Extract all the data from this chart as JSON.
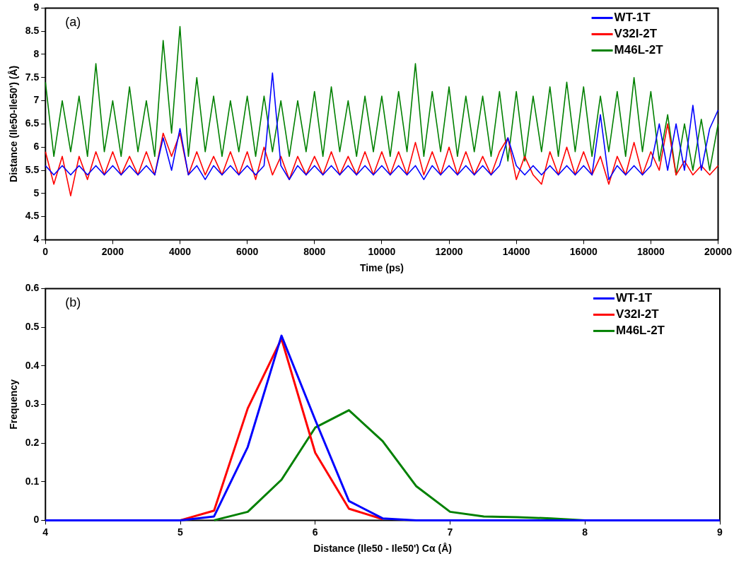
{
  "chart_data": [
    {
      "type": "line",
      "xlabel": "Time (ps)",
      "ylabel": "Distance (Ile50-Ile50') (Å)",
      "annotations": [
        "(a)"
      ],
      "legend": "top right",
      "grid": false,
      "marker": "none",
      "line_style": "solid",
      "xlim": [
        0,
        20000
      ],
      "xticks": [
        0,
        2000,
        4000,
        6000,
        8000,
        10000,
        12000,
        14000,
        16000,
        18000,
        20000
      ],
      "ylim": [
        4,
        9
      ],
      "yticks": [
        4,
        4.5,
        5,
        5.5,
        6,
        6.5,
        7,
        7.5,
        8,
        8.5,
        9
      ],
      "x": [
        0,
        250,
        500,
        750,
        1000,
        1250,
        1500,
        1750,
        2000,
        2250,
        2500,
        2750,
        3000,
        3250,
        3500,
        3750,
        4000,
        4250,
        4500,
        4750,
        5000,
        5250,
        5500,
        5750,
        6000,
        6250,
        6500,
        6750,
        7000,
        7250,
        7500,
        7750,
        8000,
        8250,
        8500,
        8750,
        9000,
        9250,
        9500,
        9750,
        10000,
        10250,
        10500,
        10750,
        11000,
        11250,
        11500,
        11750,
        12000,
        12250,
        12500,
        12750,
        13000,
        13250,
        13500,
        13750,
        14000,
        14250,
        14500,
        14750,
        15000,
        15250,
        15500,
        15750,
        16000,
        16250,
        16500,
        16750,
        17000,
        17250,
        17500,
        17750,
        18000,
        18250,
        18500,
        18750,
        19000,
        19250,
        19500,
        19750,
        20000
      ],
      "series": [
        {
          "name": "WT-1T",
          "color": "#0000ff",
          "values": [
            5.6,
            5.4,
            5.6,
            5.4,
            5.6,
            5.4,
            5.6,
            5.4,
            5.6,
            5.4,
            5.6,
            5.4,
            5.6,
            5.4,
            6.2,
            5.5,
            6.4,
            5.4,
            5.6,
            5.3,
            5.6,
            5.4,
            5.6,
            5.4,
            5.6,
            5.4,
            5.6,
            7.6,
            5.6,
            5.3,
            5.6,
            5.4,
            5.6,
            5.4,
            5.6,
            5.4,
            5.6,
            5.4,
            5.6,
            5.4,
            5.6,
            5.4,
            5.6,
            5.4,
            5.6,
            5.3,
            5.6,
            5.4,
            5.6,
            5.4,
            5.6,
            5.4,
            5.6,
            5.4,
            5.6,
            6.2,
            5.6,
            5.4,
            5.6,
            5.4,
            5.6,
            5.4,
            5.6,
            5.4,
            5.6,
            5.4,
            6.7,
            5.3,
            5.6,
            5.4,
            5.6,
            5.4,
            5.6,
            6.5,
            5.5,
            6.5,
            5.5,
            6.9,
            5.5,
            6.4,
            6.8
          ]
        },
        {
          "name": "V32I-2T",
          "color": "#ff0000",
          "values": [
            5.9,
            5.2,
            5.8,
            4.95,
            5.8,
            5.3,
            5.9,
            5.4,
            5.9,
            5.4,
            5.8,
            5.4,
            5.9,
            5.4,
            6.3,
            5.8,
            6.3,
            5.4,
            5.9,
            5.4,
            5.8,
            5.4,
            5.9,
            5.4,
            5.9,
            5.3,
            6.0,
            5.4,
            5.8,
            5.3,
            5.8,
            5.4,
            5.8,
            5.4,
            5.9,
            5.4,
            5.8,
            5.4,
            5.9,
            5.4,
            5.9,
            5.4,
            5.9,
            5.4,
            6.1,
            5.4,
            5.9,
            5.4,
            6.0,
            5.4,
            5.9,
            5.4,
            5.8,
            5.4,
            5.9,
            6.2,
            5.3,
            5.8,
            5.4,
            5.2,
            5.9,
            5.4,
            6.0,
            5.4,
            5.9,
            5.4,
            5.8,
            5.2,
            5.8,
            5.4,
            6.1,
            5.4,
            5.9,
            5.5,
            6.5,
            5.4,
            5.7,
            5.4,
            5.6,
            5.4,
            5.6
          ]
        },
        {
          "name": "M46L-2T",
          "color": "#008000",
          "values": [
            7.4,
            5.8,
            7.0,
            5.9,
            7.1,
            5.8,
            7.8,
            5.9,
            7.0,
            5.8,
            7.3,
            5.9,
            7.0,
            5.8,
            8.3,
            6.3,
            8.6,
            5.8,
            7.5,
            5.9,
            7.1,
            5.8,
            7.0,
            5.9,
            7.1,
            5.8,
            7.1,
            5.9,
            7.0,
            5.8,
            7.0,
            5.9,
            7.2,
            5.8,
            7.3,
            5.9,
            7.0,
            5.8,
            7.1,
            5.9,
            7.1,
            5.8,
            7.2,
            5.9,
            7.8,
            5.8,
            7.2,
            5.9,
            7.3,
            5.8,
            7.1,
            5.9,
            7.1,
            5.8,
            7.2,
            5.7,
            7.2,
            5.7,
            7.1,
            5.9,
            7.3,
            5.8,
            7.4,
            5.9,
            7.3,
            5.8,
            7.1,
            5.9,
            7.2,
            5.8,
            7.5,
            5.9,
            7.2,
            5.7,
            6.7,
            5.4,
            6.5,
            5.5,
            6.6,
            5.5,
            6.5
          ]
        }
      ]
    },
    {
      "type": "line",
      "xlabel": "Distance (Ile50 - Ile50') Cα (Å)",
      "ylabel": "Frequency",
      "annotations": [
        "(b)"
      ],
      "legend": "top right",
      "grid": false,
      "marker": "none",
      "line_style": "solid",
      "xlim": [
        4,
        9
      ],
      "xticks": [
        4,
        5,
        6,
        7,
        8,
        9
      ],
      "ylim": [
        0,
        0.6
      ],
      "yticks": [
        0,
        0.1,
        0.2,
        0.3,
        0.4,
        0.5,
        0.6
      ],
      "x": [
        4,
        4.25,
        4.5,
        4.75,
        5,
        5.25,
        5.5,
        5.75,
        6,
        6.25,
        6.5,
        6.75,
        7,
        7.25,
        7.5,
        7.75,
        8,
        8.25,
        8.5,
        8.75,
        9
      ],
      "series": [
        {
          "name": "WT-1T",
          "color": "#0000ff",
          "values": [
            0,
            0,
            0,
            0,
            0,
            0.01,
            0.19,
            0.478,
            0.26,
            0.05,
            0.005,
            0,
            0,
            0,
            0,
            0,
            0,
            0,
            0,
            0,
            0
          ]
        },
        {
          "name": "V32I-2T",
          "color": "#ff0000",
          "values": [
            null,
            null,
            null,
            null,
            0,
            0.025,
            0.29,
            0.47,
            0.175,
            0.03,
            0.003,
            null,
            null,
            null,
            null,
            null,
            null,
            null,
            null,
            null,
            null
          ]
        },
        {
          "name": "M46L-2T",
          "color": "#008000",
          "values": [
            null,
            null,
            null,
            null,
            null,
            0,
            0.022,
            0.105,
            0.24,
            0.285,
            0.205,
            0.088,
            0.022,
            0.01,
            0.008,
            0.005,
            0,
            null,
            null,
            null,
            null
          ]
        }
      ]
    }
  ]
}
